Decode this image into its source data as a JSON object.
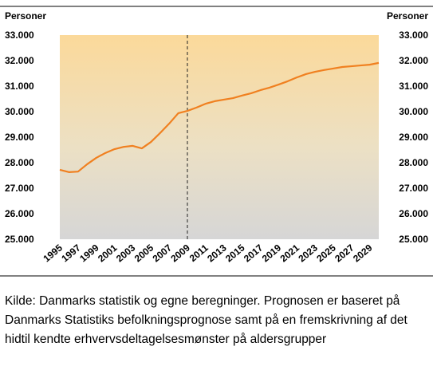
{
  "chart_data": {
    "type": "line",
    "y_label": "Personer",
    "y2_label": "Personer",
    "x": [
      1995,
      1996,
      1997,
      1998,
      1999,
      2000,
      2001,
      2002,
      2003,
      2004,
      2005,
      2006,
      2007,
      2008,
      2009,
      2010,
      2011,
      2012,
      2013,
      2014,
      2015,
      2016,
      2017,
      2018,
      2019,
      2020,
      2021,
      2022,
      2023,
      2024,
      2025,
      2026,
      2027,
      2028,
      2029,
      2030
    ],
    "series": [
      {
        "color": "#f08020",
        "values": [
          27720,
          27630,
          27650,
          27940,
          28190,
          28380,
          28530,
          28620,
          28660,
          28560,
          28810,
          29160,
          29530,
          29940,
          30030,
          30160,
          30310,
          30410,
          30470,
          30530,
          30630,
          30720,
          30840,
          30940,
          31060,
          31190,
          31340,
          31470,
          31560,
          31630,
          31690,
          31750,
          31780,
          31810,
          31840,
          31910
        ]
      }
    ],
    "xlim": [
      1995,
      2030
    ],
    "xticks": [
      1995,
      1997,
      1999,
      2001,
      2003,
      2005,
      2007,
      2009,
      2011,
      2013,
      2015,
      2017,
      2019,
      2021,
      2023,
      2025,
      2027,
      2029
    ],
    "ylim": [
      25000,
      33000
    ],
    "yticks": [
      {
        "value": 25000,
        "label": "25.000"
      },
      {
        "value": 26000,
        "label": "26.000"
      },
      {
        "value": 27000,
        "label": "27.000"
      },
      {
        "value": 28000,
        "label": "28.000"
      },
      {
        "value": 29000,
        "label": "29.000"
      },
      {
        "value": 30000,
        "label": "30.000"
      },
      {
        "value": 31000,
        "label": "31.000"
      },
      {
        "value": 32000,
        "label": "32.000"
      },
      {
        "value": 33000,
        "label": "33.000"
      }
    ],
    "y2lim": [
      25000,
      33000
    ],
    "y2ticks": [
      {
        "value": 25000,
        "label": "25.000"
      },
      {
        "value": 26000,
        "label": "26.000"
      },
      {
        "value": 27000,
        "label": "27.000"
      },
      {
        "value": 28000,
        "label": "28.000"
      },
      {
        "value": 29000,
        "label": "29.000"
      },
      {
        "value": 30000,
        "label": "30.000"
      },
      {
        "value": 31000,
        "label": "31.000"
      },
      {
        "value": 32000,
        "label": "32.000"
      },
      {
        "value": 33000,
        "label": "33.000"
      }
    ],
    "vline_x": 2009,
    "source": "Kilde: Danmarks statistik og egne beregninger. Prognosen er baseret på Danmarks Statistiks befolkningsprognose samt på en fremskrivning af det hidtil kendte erhvervsdeltagelsesmønster på aldersgrupper"
  }
}
